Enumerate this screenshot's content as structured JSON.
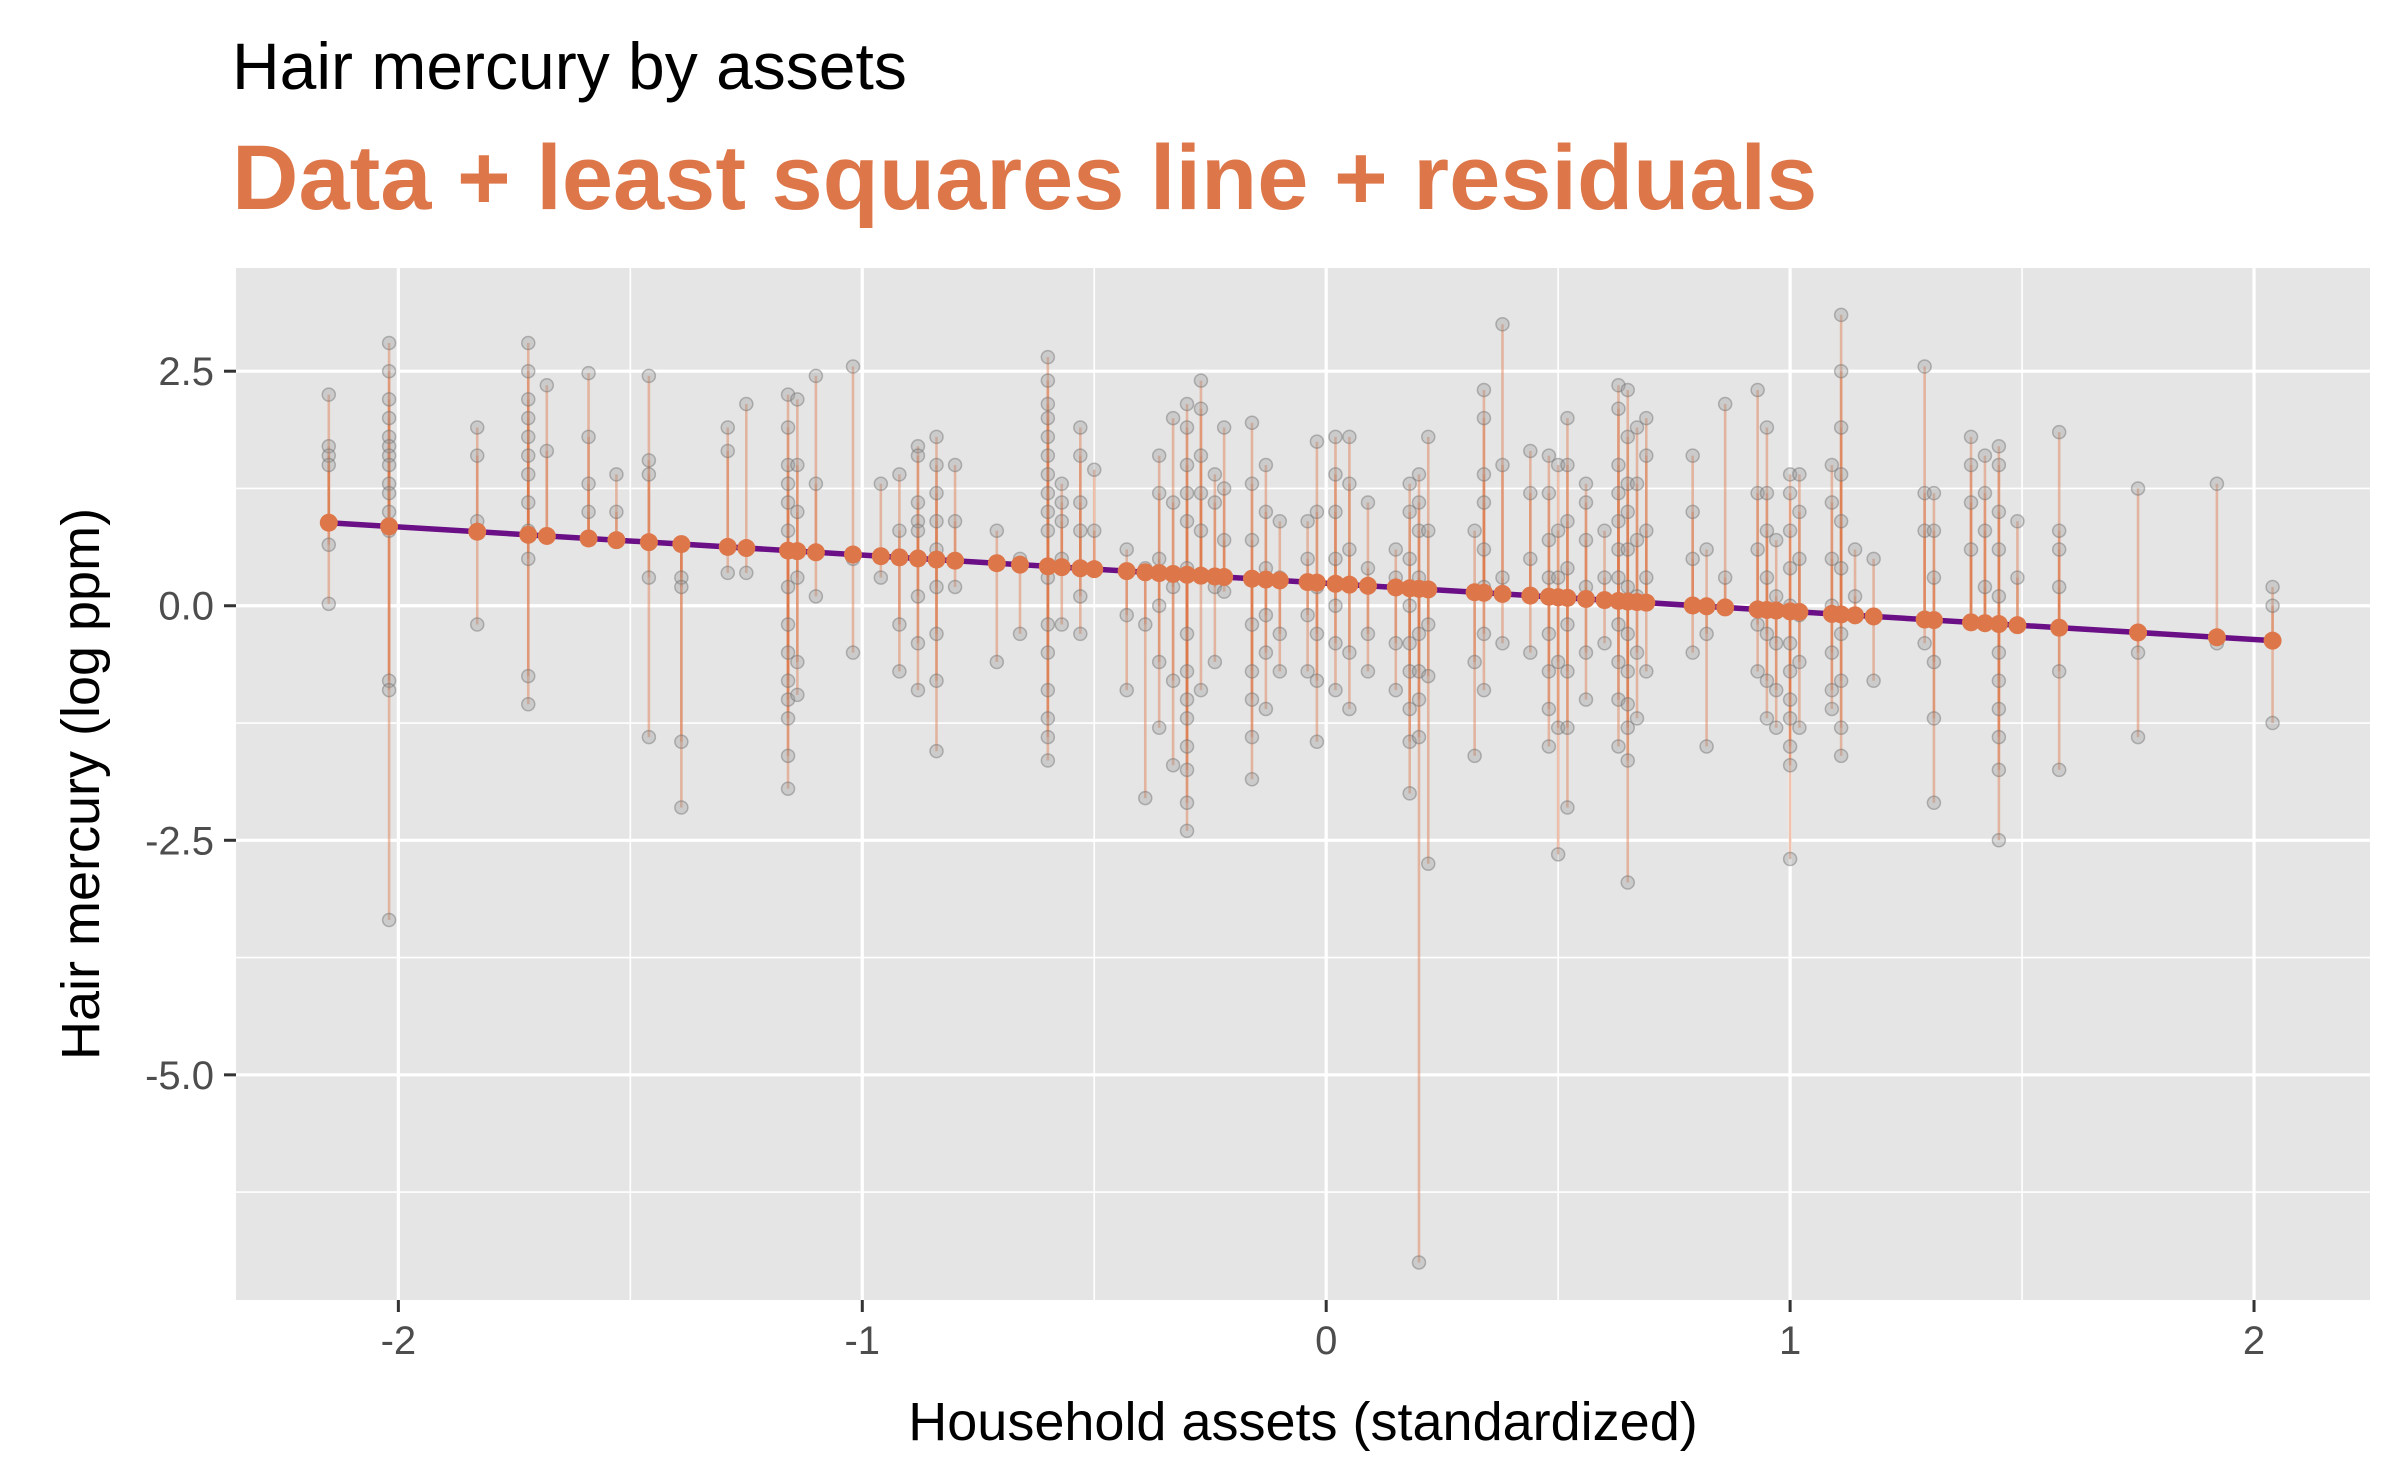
{
  "colors": {
    "panel": "#e5e5e5",
    "grid": "#ffffff",
    "point": "#9a9a9a",
    "residual": "#dd774a",
    "fitted": "#dd774a",
    "line": "#6a0f86",
    "subtitle": "#dd774a"
  },
  "chart_data": {
    "type": "scatter",
    "title": "Hair mercury by assets",
    "subtitle": "Data + least squares line + residuals",
    "xlabel": "Household assets (standardized)",
    "ylabel": "Hair mercury (log ppm)",
    "xlim": [
      -2.35,
      2.25
    ],
    "ylim": [
      -7.4,
      3.6
    ],
    "x_ticks": [
      -2,
      -1,
      0,
      1,
      2
    ],
    "x_tick_labels": [
      "-2",
      "-1",
      "0",
      "1",
      "2"
    ],
    "y_ticks": [
      2.5,
      0,
      -2.5,
      -5
    ],
    "y_tick_labels": [
      "2.5",
      "0.0",
      "-2.5",
      "-5.0"
    ],
    "grid": true,
    "fit_line": {
      "intercept": 0.24,
      "slope": -0.3,
      "x_range": [
        -2.15,
        2.04
      ]
    },
    "observations": [
      {
        "x": -2.15,
        "y": [
          2.25,
          1.7,
          1.6,
          1.5,
          0.65,
          0.02
        ]
      },
      {
        "x": -2.02,
        "y": [
          2.8,
          2.5,
          2.2,
          2.0,
          1.8,
          1.7,
          1.6,
          1.5,
          1.3,
          1.2,
          1.0,
          0.8,
          -0.8,
          -0.9,
          -3.35
        ]
      },
      {
        "x": -1.83,
        "y": [
          1.9,
          1.6,
          0.9,
          -0.2
        ]
      },
      {
        "x": -1.72,
        "y": [
          2.8,
          2.5,
          2.2,
          2.0,
          1.8,
          1.6,
          1.4,
          1.1,
          0.8,
          0.5,
          -0.75,
          -1.05
        ]
      },
      {
        "x": -1.68,
        "y": [
          2.35,
          1.65
        ]
      },
      {
        "x": -1.59,
        "y": [
          2.48,
          1.8,
          1.3,
          1.0
        ]
      },
      {
        "x": -1.53,
        "y": [
          1.4,
          1.0
        ]
      },
      {
        "x": -1.46,
        "y": [
          2.45,
          1.55,
          1.4,
          0.3,
          -1.4
        ]
      },
      {
        "x": -1.39,
        "y": [
          0.65,
          0.3,
          0.2,
          -1.45,
          -2.15
        ]
      },
      {
        "x": -1.29,
        "y": [
          1.9,
          1.65,
          0.35
        ]
      },
      {
        "x": -1.25,
        "y": [
          2.15,
          0.35
        ]
      },
      {
        "x": -1.16,
        "y": [
          2.25,
          1.9,
          1.5,
          1.3,
          1.1,
          0.8,
          0.2,
          -0.2,
          -0.5,
          -0.8,
          -1.0,
          -1.2,
          -1.6,
          -1.95
        ]
      },
      {
        "x": -1.14,
        "y": [
          2.2,
          1.5,
          1.0,
          0.3,
          -0.6,
          -0.95
        ]
      },
      {
        "x": -1.1,
        "y": [
          2.45,
          1.3,
          0.1
        ]
      },
      {
        "x": -1.02,
        "y": [
          2.55,
          0.5,
          -0.5
        ]
      },
      {
        "x": -0.96,
        "y": [
          1.3,
          0.3
        ]
      },
      {
        "x": -0.92,
        "y": [
          1.4,
          0.8,
          -0.2,
          -0.7
        ]
      },
      {
        "x": -0.88,
        "y": [
          1.7,
          1.6,
          1.1,
          0.9,
          0.8,
          0.5,
          0.1,
          -0.4,
          -0.9
        ]
      },
      {
        "x": -0.84,
        "y": [
          1.8,
          1.5,
          1.2,
          0.9,
          0.6,
          0.2,
          -0.3,
          -0.8,
          -1.55
        ]
      },
      {
        "x": -0.8,
        "y": [
          1.5,
          0.9,
          0.2
        ]
      },
      {
        "x": -0.71,
        "y": [
          0.8,
          -0.6
        ]
      },
      {
        "x": -0.66,
        "y": [
          0.5,
          -0.3
        ]
      },
      {
        "x": -0.6,
        "y": [
          2.65,
          2.4,
          2.15,
          2.0,
          1.8,
          1.6,
          1.4,
          1.2,
          1.0,
          0.8,
          0.3,
          -0.2,
          -0.5,
          -0.9,
          -1.2,
          -1.4,
          -1.65
        ]
      },
      {
        "x": -0.57,
        "y": [
          1.3,
          1.1,
          0.9,
          0.5,
          -0.2
        ]
      },
      {
        "x": -0.53,
        "y": [
          1.9,
          1.6,
          1.1,
          0.8,
          0.1,
          -0.3
        ]
      },
      {
        "x": -0.5,
        "y": [
          1.45,
          0.8
        ]
      },
      {
        "x": -0.43,
        "y": [
          0.6,
          -0.1,
          -0.9
        ]
      },
      {
        "x": -0.39,
        "y": [
          0.4,
          -0.2,
          -2.05
        ]
      },
      {
        "x": -0.36,
        "y": [
          1.6,
          1.2,
          0.5,
          0.0,
          -0.6,
          -1.3
        ]
      },
      {
        "x": -0.33,
        "y": [
          2.0,
          1.1,
          0.2,
          -0.8,
          -1.7
        ]
      },
      {
        "x": -0.3,
        "y": [
          2.15,
          1.9,
          1.5,
          1.2,
          0.9,
          0.4,
          -0.3,
          -0.7,
          -1.0,
          -1.2,
          -1.5,
          -1.75,
          -2.1,
          -2.4
        ]
      },
      {
        "x": -0.27,
        "y": [
          2.4,
          2.1,
          1.6,
          1.2,
          0.8,
          -0.9
        ]
      },
      {
        "x": -0.24,
        "y": [
          1.4,
          1.1,
          0.2,
          -0.6
        ]
      },
      {
        "x": -0.22,
        "y": [
          1.9,
          1.25,
          0.7,
          0.15
        ]
      },
      {
        "x": -0.16,
        "y": [
          1.95,
          1.3,
          0.7,
          0.3,
          -0.2,
          -0.7,
          -1.0,
          -1.4,
          -1.85
        ]
      },
      {
        "x": -0.13,
        "y": [
          1.5,
          1.0,
          0.4,
          -0.1,
          -0.5,
          -1.1
        ]
      },
      {
        "x": -0.1,
        "y": [
          0.9,
          0.3,
          -0.3,
          -0.7
        ]
      },
      {
        "x": -0.04,
        "y": [
          0.9,
          0.5,
          -0.1,
          -0.7
        ]
      },
      {
        "x": -0.02,
        "y": [
          1.75,
          1.0,
          0.2,
          -0.3,
          -0.8,
          -1.45
        ]
      },
      {
        "x": 0.02,
        "y": [
          1.8,
          1.4,
          1.0,
          0.5,
          0.0,
          -0.4,
          -0.9
        ]
      },
      {
        "x": 0.05,
        "y": [
          1.8,
          1.3,
          0.6,
          -0.5,
          -1.1
        ]
      },
      {
        "x": 0.09,
        "y": [
          1.1,
          0.4,
          -0.3,
          -0.7
        ]
      },
      {
        "x": 0.15,
        "y": [
          0.6,
          0.3,
          -0.4,
          -0.9
        ]
      },
      {
        "x": 0.18,
        "y": [
          1.3,
          1.0,
          0.5,
          0.0,
          -0.4,
          -0.7,
          -1.1,
          -1.45,
          -2.0
        ]
      },
      {
        "x": 0.2,
        "y": [
          1.4,
          1.1,
          0.8,
          0.3,
          -0.3,
          -0.7,
          -1.0,
          -1.4,
          -7.0
        ]
      },
      {
        "x": 0.22,
        "y": [
          1.8,
          0.8,
          -0.2,
          -0.75,
          -2.75
        ]
      },
      {
        "x": 0.32,
        "y": [
          0.8,
          -0.6,
          -1.6
        ]
      },
      {
        "x": 0.34,
        "y": [
          2.3,
          2.0,
          1.4,
          1.1,
          0.6,
          0.2,
          -0.3,
          -0.9
        ]
      },
      {
        "x": 0.38,
        "y": [
          3.0,
          1.5,
          0.3,
          -0.4
        ]
      },
      {
        "x": 0.44,
        "y": [
          1.65,
          1.2,
          0.5,
          -0.5
        ]
      },
      {
        "x": 0.48,
        "y": [
          1.6,
          1.2,
          0.7,
          0.3,
          -0.3,
          -0.7,
          -1.1,
          -1.5
        ]
      },
      {
        "x": 0.5,
        "y": [
          1.5,
          0.8,
          0.3,
          -0.6,
          -1.3,
          -2.65
        ]
      },
      {
        "x": 0.52,
        "y": [
          2.0,
          1.5,
          0.9,
          0.4,
          -0.2,
          -0.7,
          -1.3,
          -2.15
        ]
      },
      {
        "x": 0.56,
        "y": [
          1.3,
          1.1,
          0.7,
          0.2,
          -0.5,
          -1.0
        ]
      },
      {
        "x": 0.6,
        "y": [
          0.8,
          0.3,
          -0.4
        ]
      },
      {
        "x": 0.63,
        "y": [
          2.35,
          2.1,
          1.5,
          1.2,
          0.9,
          0.6,
          0.3,
          -0.2,
          -0.6,
          -1.0,
          -1.5
        ]
      },
      {
        "x": 0.65,
        "y": [
          2.3,
          1.8,
          1.3,
          1.0,
          0.6,
          0.2,
          -0.3,
          -0.7,
          -1.05,
          -1.3,
          -1.65,
          -2.95
        ]
      },
      {
        "x": 0.67,
        "y": [
          1.9,
          1.3,
          0.7,
          0.1,
          -0.5,
          -1.2
        ]
      },
      {
        "x": 0.69,
        "y": [
          2.0,
          1.6,
          0.8,
          0.3,
          -0.7
        ]
      },
      {
        "x": 0.79,
        "y": [
          1.6,
          1.0,
          0.5,
          -0.5
        ]
      },
      {
        "x": 0.82,
        "y": [
          0.6,
          -0.3,
          -1.5
        ]
      },
      {
        "x": 0.86,
        "y": [
          2.15,
          0.3
        ]
      },
      {
        "x": 0.93,
        "y": [
          2.3,
          1.2,
          0.6,
          -0.2,
          -0.7
        ]
      },
      {
        "x": 0.95,
        "y": [
          1.9,
          1.2,
          0.8,
          0.3,
          -0.3,
          -0.8,
          -1.2
        ]
      },
      {
        "x": 0.97,
        "y": [
          0.7,
          0.1,
          -0.4,
          -0.9,
          -1.3
        ]
      },
      {
        "x": 1.0,
        "y": [
          1.4,
          1.2,
          0.8,
          0.4,
          0.0,
          -0.4,
          -0.7,
          -1.0,
          -1.2,
          -1.5,
          -1.7,
          -2.7
        ]
      },
      {
        "x": 1.02,
        "y": [
          1.4,
          1.0,
          0.5,
          -0.1,
          -0.6,
          -1.3
        ]
      },
      {
        "x": 1.09,
        "y": [
          1.5,
          1.1,
          0.5,
          0.0,
          -0.5,
          -0.9,
          -1.1
        ]
      },
      {
        "x": 1.11,
        "y": [
          3.1,
          2.5,
          1.9,
          1.4,
          0.9,
          0.4,
          -0.3,
          -0.8,
          -1.3,
          -1.6
        ]
      },
      {
        "x": 1.14,
        "y": [
          0.6,
          0.1
        ]
      },
      {
        "x": 1.18,
        "y": [
          0.5,
          -0.8
        ]
      },
      {
        "x": 1.29,
        "y": [
          2.55,
          1.2,
          0.8,
          -0.4
        ]
      },
      {
        "x": 1.31,
        "y": [
          1.2,
          0.8,
          0.3,
          -0.6,
          -1.2,
          -2.1
        ]
      },
      {
        "x": 1.39,
        "y": [
          1.8,
          1.5,
          1.1,
          0.6
        ]
      },
      {
        "x": 1.42,
        "y": [
          1.6,
          1.2,
          0.8,
          0.2
        ]
      },
      {
        "x": 1.45,
        "y": [
          1.7,
          1.5,
          1.0,
          0.6,
          0.1,
          -0.5,
          -0.8,
          -1.1,
          -1.4,
          -1.75,
          -2.5
        ]
      },
      {
        "x": 1.49,
        "y": [
          0.9,
          0.3
        ]
      },
      {
        "x": 1.58,
        "y": [
          1.85,
          0.8,
          0.6,
          0.2,
          -0.7,
          -1.75
        ]
      },
      {
        "x": 1.75,
        "y": [
          1.25,
          -0.5,
          -1.4
        ]
      },
      {
        "x": 1.92,
        "y": [
          1.3,
          -0.4
        ]
      },
      {
        "x": 2.04,
        "y": [
          0.2,
          0.0,
          -1.25
        ]
      }
    ]
  }
}
